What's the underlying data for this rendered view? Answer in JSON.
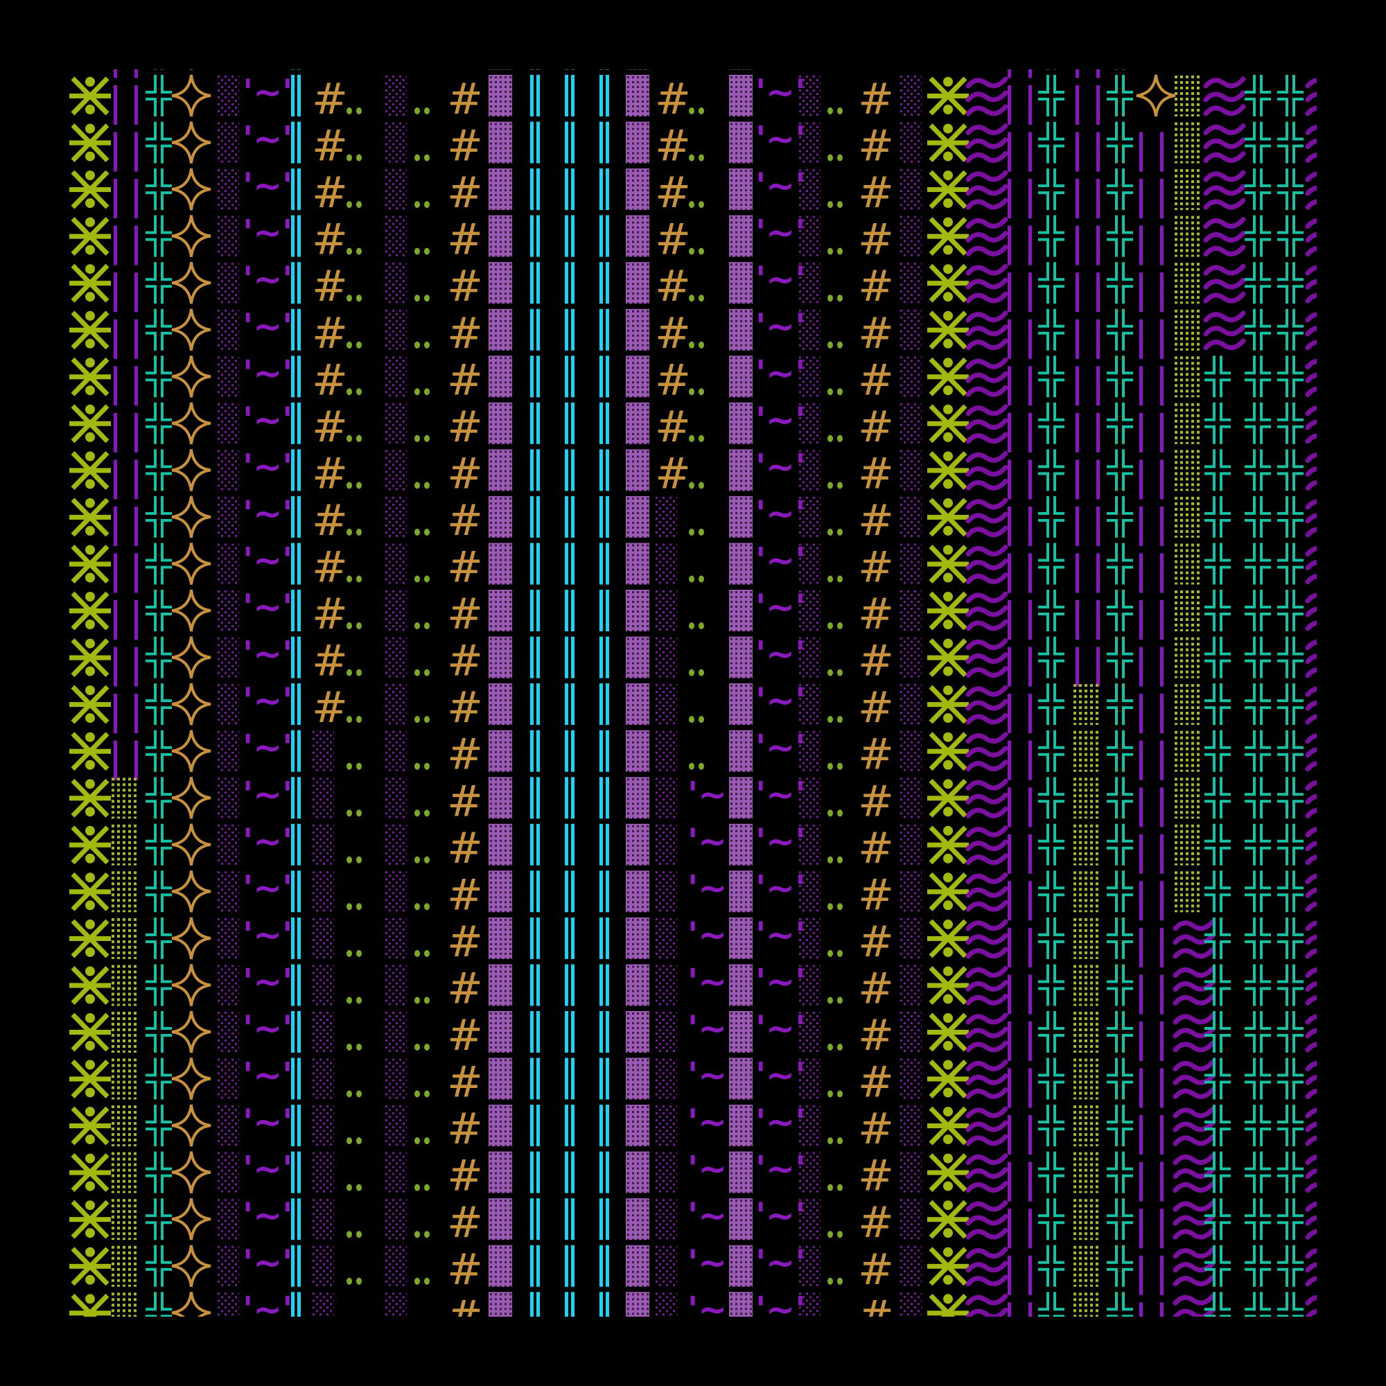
{
  "background": "#000000",
  "rows": 28,
  "glyphs": {
    "xfig": {
      "name": "x-figure-glyph",
      "color": "#a3b90f"
    },
    "bars": {
      "name": "double-bar-glyph",
      "color": "#8a16c2"
    },
    "tcross": {
      "name": "double-cross-glyph",
      "color": "#17c1a3"
    },
    "star": {
      "name": "four-point-star-glyph",
      "color": "#c8913c"
    },
    "pdots": {
      "name": "purple-dot-block-glyph",
      "color": "#7b1a9b"
    },
    "tilde": {
      "name": "tilde-glyph",
      "color": "#8c18c0",
      "text": "'~'"
    },
    "cyan": {
      "name": "cyan-double-line-glyph",
      "color": "#1ad4f5"
    },
    "hash": {
      "name": "hash-glyph",
      "color": "#c8913c",
      "text": "#"
    },
    "gdots": {
      "name": "green-two-dots-glyph",
      "color": "#7da82a"
    },
    "lblock": {
      "name": "lavender-grid-block-glyph",
      "color": "#9b5bb3"
    },
    "ydots": {
      "name": "yellow-dot-block-glyph",
      "color": "#a9bb1a"
    },
    "wave": {
      "name": "triple-wave-glyph",
      "color": "#7a0fa0"
    }
  },
  "columns": [
    [
      {
        "glyph": "xfig",
        "from": -1,
        "to": 26
      }
    ],
    [
      {
        "glyph": "bars",
        "from": -1,
        "to": 14
      },
      {
        "glyph": "ydots",
        "from": 15,
        "to": 26
      }
    ],
    [
      {
        "glyph": "tcross",
        "from": -1,
        "to": 26
      }
    ],
    [
      {
        "glyph": "star",
        "from": -1,
        "to": 26
      }
    ],
    [
      {
        "glyph": "pdots",
        "from": -1,
        "to": 26
      }
    ],
    [
      {
        "glyph": "tilde",
        "from": -1,
        "to": 26
      }
    ],
    [
      {
        "glyph": "cyan",
        "from": -1,
        "to": 26
      }
    ],
    [
      {
        "glyph": "hash",
        "from": -1,
        "to": 13
      },
      {
        "glyph": "pdots",
        "from": 14,
        "to": 26
      }
    ],
    [
      {
        "glyph": "gdots",
        "from": -1,
        "to": 26
      }
    ],
    [
      {
        "glyph": "pdots",
        "from": -1,
        "to": 26
      }
    ],
    [
      {
        "glyph": "gdots",
        "from": -1,
        "to": 26
      }
    ],
    [
      {
        "glyph": "hash",
        "from": -1,
        "to": 26
      }
    ],
    [
      {
        "glyph": "lblock",
        "from": -1,
        "to": 26
      }
    ],
    [
      {
        "glyph": "cyan",
        "from": -1,
        "to": 26
      }
    ],
    [
      {
        "glyph": "cyan",
        "from": -1,
        "to": 26
      }
    ],
    [
      {
        "glyph": "cyan",
        "from": -1,
        "to": 26
      }
    ],
    [
      {
        "glyph": "lblock",
        "from": -1,
        "to": 26
      }
    ],
    [
      {
        "glyph": "hash",
        "from": -1,
        "to": 8
      },
      {
        "glyph": "pdots",
        "from": 9,
        "to": 26
      }
    ],
    [
      {
        "glyph": "gdots",
        "from": -1,
        "to": 14
      },
      {
        "glyph": "tilde",
        "from": 15,
        "to": 26
      }
    ],
    [
      {
        "glyph": "lblock",
        "from": -1,
        "to": 26
      }
    ],
    [
      {
        "glyph": "tilde",
        "from": -1,
        "to": 26
      }
    ],
    [
      {
        "glyph": "pdots",
        "from": -1,
        "to": 26
      }
    ],
    [
      {
        "glyph": "gdots",
        "from": -1,
        "to": 26
      }
    ],
    [
      {
        "glyph": "hash",
        "from": -1,
        "to": 26
      }
    ],
    [
      {
        "glyph": "pdots",
        "from": -1,
        "to": 26
      }
    ],
    [
      {
        "glyph": "xfig",
        "from": -1,
        "to": 26
      }
    ],
    [
      {
        "glyph": "wave",
        "from": -1,
        "to": 26
      }
    ],
    [
      {
        "glyph": "bars",
        "from": -1,
        "to": 26
      }
    ],
    [
      {
        "glyph": "tcross",
        "from": -1,
        "to": 26
      }
    ],
    [
      {
        "glyph": "bars",
        "from": -1,
        "to": 12
      },
      {
        "glyph": "ydots",
        "from": 13,
        "to": 26
      }
    ],
    [
      {
        "glyph": "tcross",
        "from": -1,
        "to": 26
      }
    ],
    [
      {
        "glyph": "star",
        "from": 0,
        "to": 0
      },
      {
        "glyph": "bars",
        "from": 1,
        "to": 26
      }
    ],
    [
      {
        "glyph": "ydots",
        "from": 0,
        "to": 17
      },
      {
        "glyph": "wave",
        "from": 18,
        "to": 26
      }
    ],
    [
      {
        "glyph": "wave",
        "from": 0,
        "to": 5
      },
      {
        "glyph": "tcross",
        "from": 6,
        "to": 26
      }
    ],
    [
      {
        "glyph": "tcross",
        "from": 0,
        "to": 26
      }
    ],
    [
      {
        "glyph": "tcross",
        "from": 0,
        "to": 26
      }
    ],
    [
      {
        "glyph": "wave",
        "from": 0,
        "to": 26
      }
    ]
  ]
}
